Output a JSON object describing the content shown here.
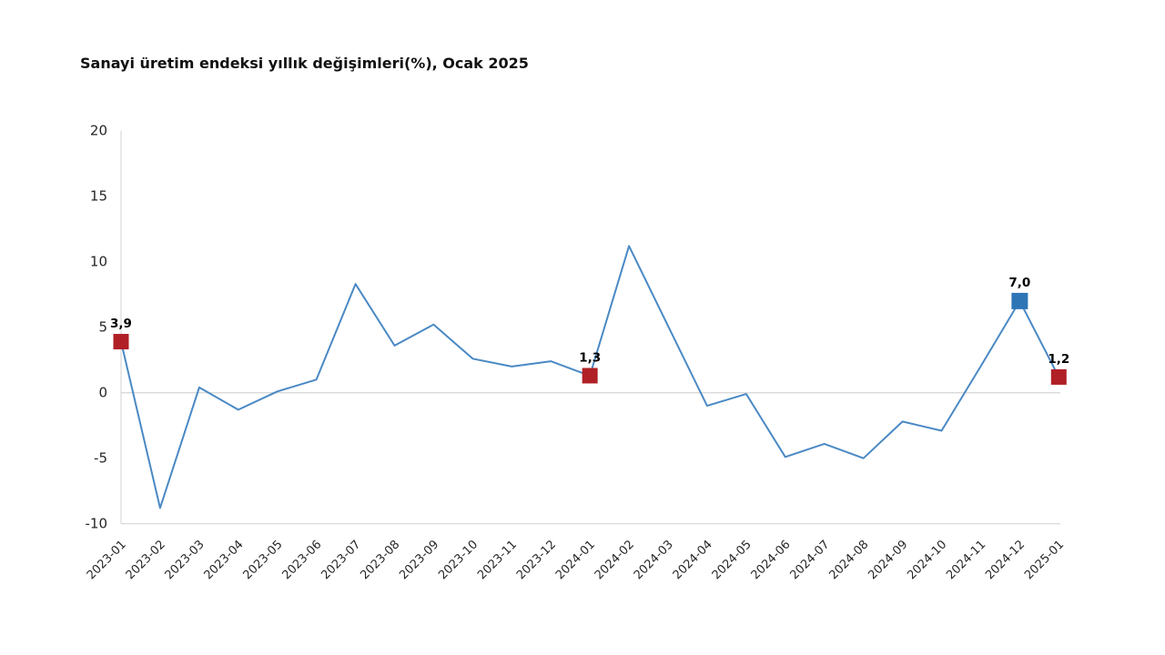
{
  "chart_data": {
    "type": "line",
    "title": "Sanayi üretim endeksi yıllık değişimleri(%), Ocak 2025",
    "categories": [
      "2023-01",
      "2023-02",
      "2023-03",
      "2023-04",
      "2023-05",
      "2023-06",
      "2023-07",
      "2023-08",
      "2023-09",
      "2023-10",
      "2023-11",
      "2023-12",
      "2024-01",
      "2024-02",
      "2024-03",
      "2024-04",
      "2024-05",
      "2024-06",
      "2024-07",
      "2024-08",
      "2024-09",
      "2024-10",
      "2024-11",
      "2024-12",
      "2025-01"
    ],
    "values": [
      3.9,
      -8.8,
      0.4,
      -1.3,
      0.1,
      1.0,
      8.3,
      3.6,
      5.2,
      2.6,
      2.0,
      2.4,
      1.3,
      11.2,
      5.1,
      -1.0,
      -0.1,
      -4.9,
      -3.9,
      -5.0,
      -2.2,
      -2.9,
      2.0,
      7.0,
      1.2
    ],
    "ylim": [
      -10,
      20
    ],
    "yticks": [
      20,
      15,
      10,
      5,
      0,
      -5,
      -10
    ],
    "xlabel": "",
    "ylabel": "",
    "legend": "none",
    "grid": "zero-line-only",
    "annotations": [
      {
        "index": 0,
        "label": "3,9",
        "marker": "red-square"
      },
      {
        "index": 12,
        "label": "1,3",
        "marker": "red-square"
      },
      {
        "index": 23,
        "label": "7,0",
        "marker": "blue-square"
      },
      {
        "index": 24,
        "label": "1,2",
        "marker": "red-square"
      }
    ],
    "colors": {
      "line": "#4a89c4",
      "marker_red": "#b02026",
      "marker_blue": "#2e75b6",
      "gridline": "#d9d9d9",
      "axis": "#d0d0d0",
      "tick_text": "#262626",
      "background": "#ffffff"
    }
  }
}
